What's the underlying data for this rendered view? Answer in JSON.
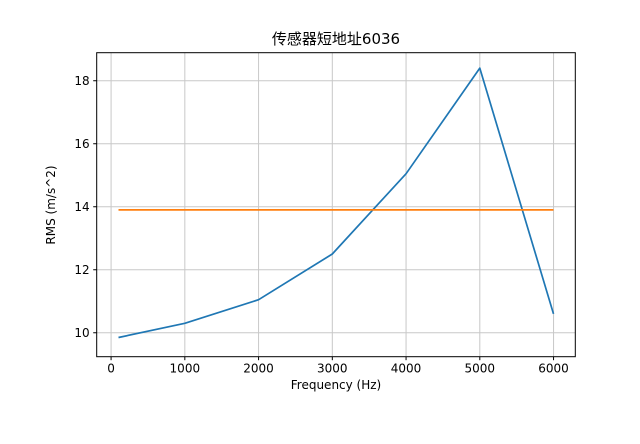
{
  "figure": {
    "background": "#ffffff"
  },
  "chart_data": {
    "type": "line",
    "title": "传感器短地址6036",
    "xlabel": "Frequency (Hz)",
    "ylabel": "RMS (m/s^2)",
    "xlim": [
      -195,
      6295
    ],
    "ylim": [
      9.24,
      18.89
    ],
    "xticks": [
      0,
      1000,
      2000,
      3000,
      4000,
      5000,
      6000
    ],
    "xticklabels": [
      "0",
      "1000",
      "2000",
      "3000",
      "4000",
      "5000",
      "6000"
    ],
    "yticks": [
      10,
      12,
      14,
      16,
      18
    ],
    "yticklabels": [
      "10",
      "12",
      "14",
      "16",
      "18"
    ],
    "grid": true,
    "grid_color": "#c8c8c8",
    "spine_color": "#000000",
    "legend": "none",
    "series": [
      {
        "name": "rms",
        "color": "#1f77b4",
        "x": [
          100,
          1000,
          2000,
          3000,
          4000,
          5000,
          6000
        ],
        "y": [
          9.85,
          10.3,
          11.05,
          12.5,
          15.05,
          18.4,
          10.6
        ]
      },
      {
        "name": "threshold",
        "color": "#ff7f0e",
        "x": [
          100,
          6000
        ],
        "y": [
          13.9,
          13.9
        ]
      }
    ]
  }
}
